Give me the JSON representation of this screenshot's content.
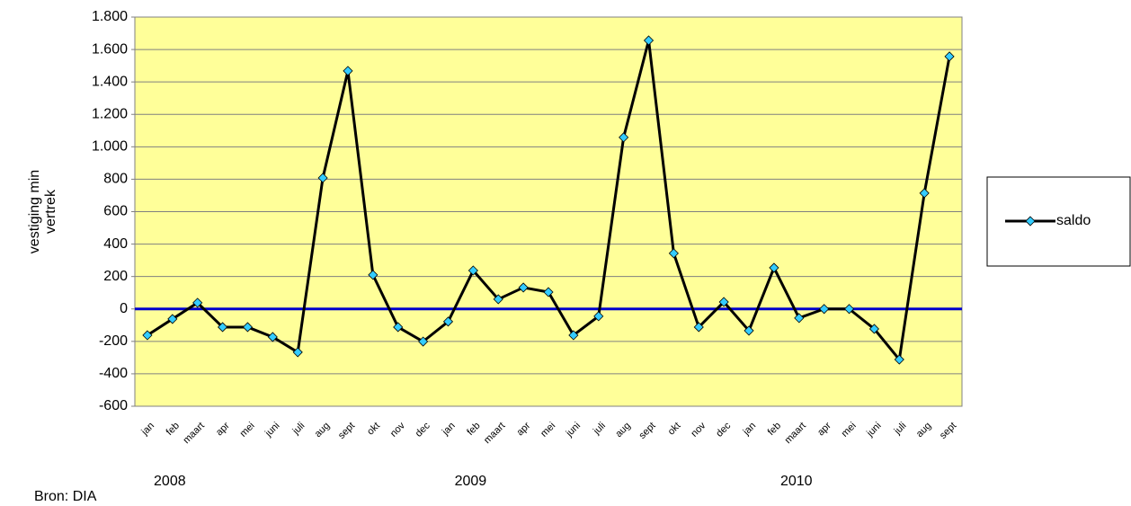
{
  "chart_data": {
    "type": "line",
    "ylabel": [
      "vestiging min",
      "vertrek"
    ],
    "categories": [
      "jan",
      "feb",
      "maart",
      "apr",
      "mei",
      "juni",
      "juli",
      "aug",
      "sept",
      "okt",
      "nov",
      "dec",
      "jan",
      "feb",
      "maart",
      "apr",
      "mei",
      "juni",
      "juli",
      "aug",
      "sept",
      "okt",
      "nov",
      "dec",
      "jan",
      "feb",
      "maart",
      "apr",
      "mei",
      "juni",
      "juli",
      "aug",
      "sept"
    ],
    "years": [
      "2008",
      "2009",
      "2010"
    ],
    "series": [
      {
        "name": "saldo",
        "color": "#000000",
        "marker_color": "#33ccff",
        "values": [
          -162,
          -62,
          38,
          -112,
          -112,
          -173,
          -267,
          808,
          1468,
          210,
          -112,
          -201,
          -78,
          237,
          60,
          132,
          104,
          -162,
          -45,
          1058,
          1656,
          343,
          -112,
          43,
          -134,
          254,
          -56,
          0,
          0,
          -123,
          -312,
          714,
          1557
        ]
      }
    ],
    "ylim": [
      -600,
      1800
    ],
    "yticks": [
      -600,
      -400,
      -200,
      0,
      200,
      400,
      600,
      800,
      {
        "value": 1000,
        "label": "1.000"
      },
      {
        "value": 1200,
        "label": "1.200"
      },
      {
        "value": 1400,
        "label": "1.400"
      },
      {
        "value": 1600,
        "label": "1.600"
      },
      {
        "value": 1800,
        "label": "1.800"
      }
    ],
    "grid": true,
    "reference_line": {
      "value": 0,
      "color": "#0000cc"
    },
    "plot_background": "#ffff99",
    "legend": "right",
    "source": "Bron: DIA"
  }
}
